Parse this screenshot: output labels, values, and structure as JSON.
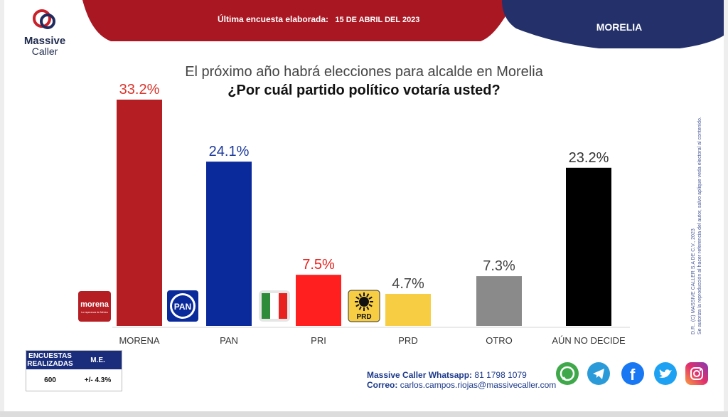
{
  "header": {
    "logo_name": "Massive",
    "logo_name2": "Caller",
    "survey_label": "Última encuesta elaborada:",
    "survey_date": "15 DE ABRIL DEL 2023",
    "city": "MORELIA",
    "colors": {
      "red": "#b3121c",
      "navy": "#1f2a5e"
    }
  },
  "question": {
    "line1": "El próximo año habrá elecciones para alcalde en Morelia",
    "line2": "¿Por cuál partido político votaría usted?"
  },
  "chart_data": {
    "type": "bar",
    "title": "",
    "categories": [
      "MORENA",
      "PAN",
      "PRI",
      "PRD",
      "OTRO",
      "AÚN NO DECIDE"
    ],
    "values": [
      33.2,
      24.1,
      7.5,
      4.7,
      7.3,
      23.2
    ],
    "value_labels": [
      "33.2%",
      "24.1%",
      "7.5%",
      "4.7%",
      "7.3%",
      "23.2%"
    ],
    "colors": [
      "#b51f24",
      "#0a2a9b",
      "#ff1f1f",
      "#f7cd44",
      "#8a8a8a",
      "#000000"
    ],
    "label_colors": [
      "#d9342b",
      "#1d3a9a",
      "#e8231f",
      "#444444",
      "#444444",
      "#333333"
    ],
    "ylim": [
      0,
      33.2
    ],
    "grid": false,
    "party_logos": [
      "morena-logo",
      "pan-logo",
      "pri-logo",
      "prd-logo"
    ],
    "logo_text": {
      "morena": "morena",
      "morena_sub": "La esperanza de México",
      "pan": "PAN",
      "prd": "PRD"
    }
  },
  "copyright": {
    "line1": "D.R.. (C) MASSIVE CALLER S.A DE C.V., 2023",
    "line2": "Se autoriza la reproducción al hacer referencia del autor, salvo aplique veda electoral al contenido."
  },
  "stats": {
    "col1_header": "ENCUESTAS REALIZADAS",
    "col2_header": "M.E.",
    "col1_value": "600",
    "col2_value": "+/- 4.3%"
  },
  "contact": {
    "whatsapp_label": "Massive Caller Whatsapp:",
    "whatsapp_number": "81 1798 1079",
    "email_label": "Correo:",
    "email": "carlos.campos.riojas@massivecaller.com"
  },
  "social_icons": [
    "whatsapp-icon",
    "telegram-icon",
    "facebook-icon",
    "twitter-icon",
    "instagram-icon"
  ]
}
